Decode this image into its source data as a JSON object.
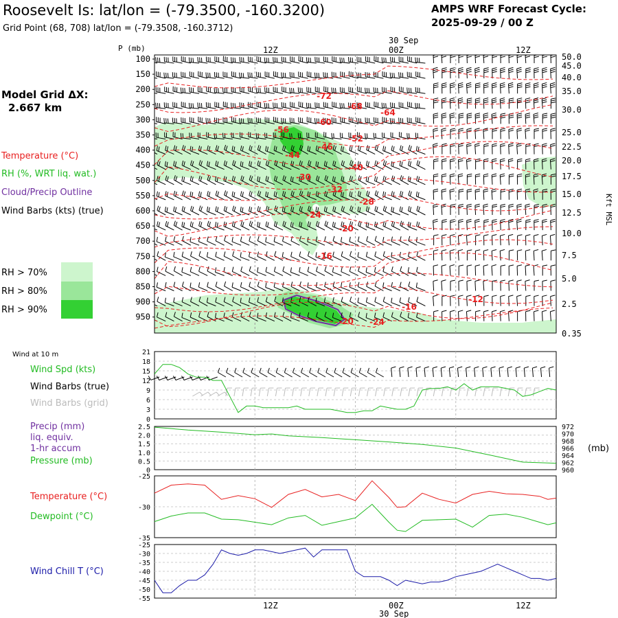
{
  "header": {
    "title": "Roosevelt Is:  lat/lon = (-79.3500, -160.3200)",
    "subtitle": "Grid Point (68, 708) lat/lon = (-79.3508, -160.3712)",
    "cycle_label": "AMPS WRF Forecast Cycle:",
    "cycle_value": "2025-09-29 / 00  Z"
  },
  "left_panel": {
    "model_grid_label": "Model Grid ΔX:",
    "model_grid_value": "2.667 km",
    "legend_temperature": "Temperature (°C)",
    "legend_rh": "RH (%, WRT liq. wat.)",
    "legend_cloud": "Cloud/Precip Outline",
    "legend_wind": "Wind Barbs (kts) (true)",
    "rh_levels": [
      "RH > 70%",
      "RH > 80%",
      "RH > 90%"
    ],
    "wind_at_10m": "Wind at 10 m",
    "wind_spd": "Wind Spd (kts)",
    "wind_barbs_true": "Wind Barbs (true)",
    "wind_barbs_grid": "Wind Barbs (grid)",
    "precip_1": "Precip (mm)",
    "precip_2": "liq. equiv.",
    "precip_3": "1-hr accum",
    "pressure": "Pressure (mb)",
    "temperature": "Temperature (°C)",
    "dewpoint": "Dewpoint (°C)",
    "wind_chill": "Wind Chill T (°C)",
    "mb_unit": "(mb)"
  },
  "colors": {
    "temp": "#e82020",
    "rh70": "#cdf5cd",
    "rh80": "#9ae69a",
    "rh90": "#33d033",
    "green": "#22bb22",
    "purple": "#7030a0",
    "blue": "#1a1aa8",
    "grid": "#bbbbbb"
  },
  "chart_data": [
    {
      "type": "contour",
      "name": "cross-section",
      "time_labels_top": [
        "12Z",
        "00Z",
        "12Z"
      ],
      "date_label": "30 Sep",
      "ylabel": "P (mb)",
      "pressure_levels": [
        "100",
        "150",
        "200",
        "250",
        "300",
        "350",
        "400",
        "450",
        "500",
        "550",
        "600",
        "650",
        "700",
        "750",
        "800",
        "850",
        "900",
        "950"
      ],
      "height_levels": [
        "50.0",
        "45.0",
        "40.0",
        "35.0",
        "30.0",
        "25.0",
        "22.5",
        "20.0",
        "17.5",
        "15.0",
        "12.5",
        "10.0",
        "7.5",
        "5.0",
        "2.5",
        "0.35"
      ],
      "right_axis_label": "Kft MSL",
      "temp_labels": [
        "-72",
        "-68",
        "-64",
        "-56",
        "-60",
        "-52",
        "-46",
        "-44",
        "-40",
        "-30",
        "-32",
        "-28",
        "-24",
        "-20",
        "-16",
        "-16",
        "-12",
        "-20",
        "-24"
      ]
    },
    {
      "type": "line",
      "name": "wind-10m",
      "ylabel": "Wind Spd (kts)",
      "yticks": [
        "21",
        "18",
        "15",
        "12",
        "9",
        "6",
        "3",
        "0"
      ],
      "ylim": [
        0,
        21
      ],
      "x": [
        0,
        1,
        2,
        3,
        4,
        5,
        6,
        7,
        8,
        9,
        10,
        11,
        12,
        13,
        14,
        15,
        16,
        17,
        18,
        19,
        20,
        21,
        22,
        23,
        24,
        25,
        26,
        27,
        28,
        29,
        30,
        31,
        32,
        33,
        34,
        35,
        36,
        37,
        38,
        39,
        40,
        41,
        42,
        43,
        44,
        45,
        46,
        47,
        48
      ],
      "values": [
        14,
        17,
        17,
        16,
        14,
        13,
        13,
        12,
        12,
        7,
        2,
        4,
        4,
        3.5,
        3.5,
        3.5,
        3.5,
        4,
        3,
        3,
        3,
        3,
        2.5,
        2,
        2,
        2.5,
        2.5,
        4,
        3.5,
        3,
        3,
        4,
        9,
        9.5,
        9.5,
        10,
        9,
        11,
        9,
        10,
        10,
        10,
        9.5,
        9,
        7,
        7.5,
        8.5,
        9.5,
        9
      ]
    },
    {
      "type": "line",
      "name": "pressure",
      "ylabel": "Pressure (mb)",
      "yticks_left": [
        "2.5",
        "2.0",
        "1.5",
        "1.0",
        "0.5",
        "0"
      ],
      "yticks_right": [
        "972",
        "970",
        "968",
        "966",
        "964",
        "962",
        "960"
      ],
      "ylim": [
        960,
        972
      ],
      "x": [
        0,
        4,
        8,
        12,
        14,
        16,
        20,
        24,
        28,
        32,
        36,
        40,
        44,
        48
      ],
      "values": [
        971.8,
        971.0,
        970.4,
        969.7,
        969.9,
        969.4,
        968.9,
        968.3,
        967.7,
        967.0,
        966.0,
        964.1,
        962.1,
        961.8
      ]
    },
    {
      "type": "line",
      "name": "temp-dewpoint",
      "ylim": [
        -35,
        -25
      ],
      "yticks": [
        "-25",
        "-30",
        "-35"
      ],
      "x": [
        0,
        2,
        4,
        6,
        8,
        10,
        12,
        14,
        16,
        18,
        20,
        22,
        24,
        26,
        28,
        29,
        30,
        32,
        34,
        36,
        38,
        40,
        42,
        44,
        46,
        47,
        48
      ],
      "series": [
        {
          "name": "Temperature (°C)",
          "values": [
            -27.8,
            -26.5,
            -26.3,
            -26.5,
            -28.8,
            -28.2,
            -28.7,
            -30.1,
            -28.0,
            -27.2,
            -28.4,
            -28.0,
            -29.0,
            -25.8,
            -28.5,
            -30.1,
            -30.0,
            -27.8,
            -28.8,
            -29.4,
            -28.0,
            -27.5,
            -27.9,
            -28.0,
            -28.3,
            -28.8,
            -28.6
          ]
        },
        {
          "name": "Dewpoint (°C)",
          "values": [
            -32.4,
            -31.5,
            -31.0,
            -31.0,
            -32.0,
            -32.1,
            -32.5,
            -32.9,
            -31.8,
            -31.4,
            -33.0,
            -32.4,
            -31.8,
            -29.6,
            -32.5,
            -33.8,
            -34.0,
            -32.2,
            -32.1,
            -32.0,
            -33.3,
            -31.4,
            -31.2,
            -31.7,
            -32.5,
            -32.9,
            -32.6
          ]
        }
      ]
    },
    {
      "type": "line",
      "name": "wind-chill",
      "ylabel": "Wind Chill T (°C)",
      "yticks": [
        "-25",
        "-30",
        "-35",
        "-40",
        "-45",
        "-50",
        "-55"
      ],
      "ylim": [
        -55,
        -25
      ],
      "x": [
        0,
        1,
        2,
        3,
        4,
        5,
        6,
        7,
        8,
        9,
        10,
        11,
        12,
        13,
        14,
        15,
        16,
        17,
        18,
        19,
        20,
        21,
        22,
        23,
        24,
        25,
        26,
        27,
        28,
        29,
        30,
        31,
        32,
        33,
        34,
        35,
        36,
        37,
        38,
        39,
        40,
        41,
        42,
        43,
        44,
        45,
        46,
        47,
        48
      ],
      "values": [
        -45,
        -52,
        -52,
        -48,
        -45,
        -45,
        -42,
        -36,
        -28,
        -30,
        -31,
        -30,
        -28,
        -28,
        -29,
        -30,
        -29,
        -28,
        -27,
        -32,
        -28,
        -28,
        -28,
        -28,
        -40,
        -43,
        -43,
        -43,
        -45,
        -48,
        -45,
        -46,
        -47,
        -46,
        -46,
        -45,
        -43,
        -42,
        -41,
        -40,
        -38,
        -36,
        -38,
        -40,
        -42,
        -44,
        -44,
        -45,
        -44
      ]
    }
  ],
  "bottom_axis": {
    "time_labels": [
      "12Z",
      "00Z",
      "12Z"
    ],
    "date_label": "30 Sep"
  }
}
